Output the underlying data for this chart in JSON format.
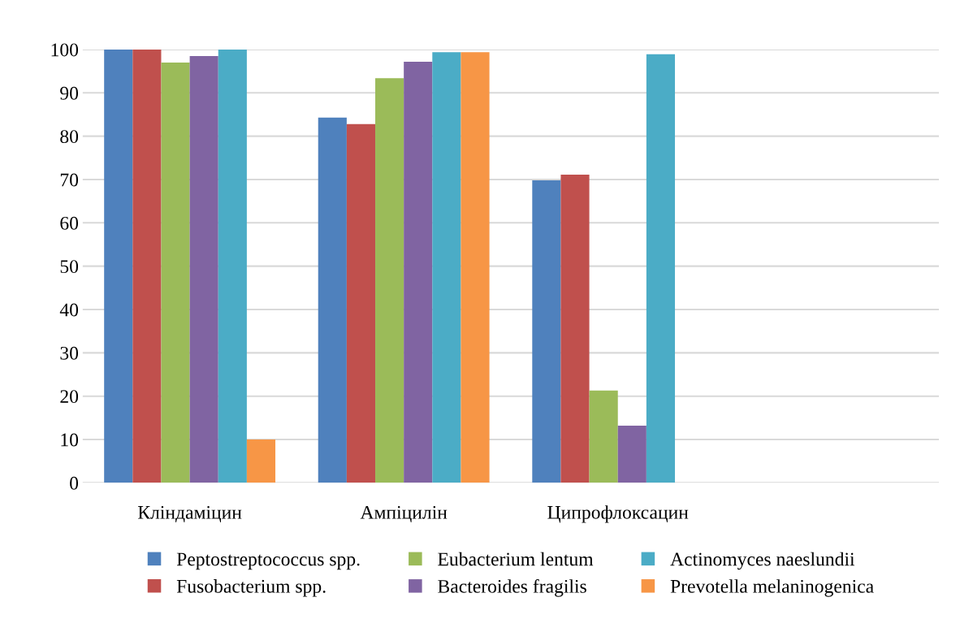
{
  "chart_data": {
    "type": "bar",
    "categories": [
      "Кліндаміцин",
      "Ампіцилін",
      "Ципрофлоксацин",
      null
    ],
    "series": [
      {
        "name": "Peptostreptococcus spp.",
        "color": "#4f81bd",
        "values": [
          100,
          84.3,
          69.8,
          null
        ]
      },
      {
        "name": "Fusobacterium spp.",
        "color": "#c0504d",
        "values": [
          100,
          82.8,
          71.1,
          null
        ]
      },
      {
        "name": "Eubacterium lentum",
        "color": "#9bbb59",
        "values": [
          97,
          93.4,
          21.3,
          null
        ]
      },
      {
        "name": "Bacteroides fragilis",
        "color": "#8064a2",
        "values": [
          98.5,
          97.2,
          13.2,
          null
        ]
      },
      {
        "name": "Actinomyces naeslundii",
        "color": "#4bacc6",
        "values": [
          100,
          99.4,
          98.9,
          null
        ]
      },
      {
        "name": "Prevotella melaninogenica",
        "color": "#f79646",
        "values": [
          10,
          99.4,
          null,
          null
        ]
      }
    ],
    "ylim": [
      0,
      100
    ],
    "yticks": [
      0,
      10,
      20,
      30,
      40,
      50,
      60,
      70,
      80,
      90,
      100
    ],
    "grid": "y",
    "legend": "bottom"
  }
}
